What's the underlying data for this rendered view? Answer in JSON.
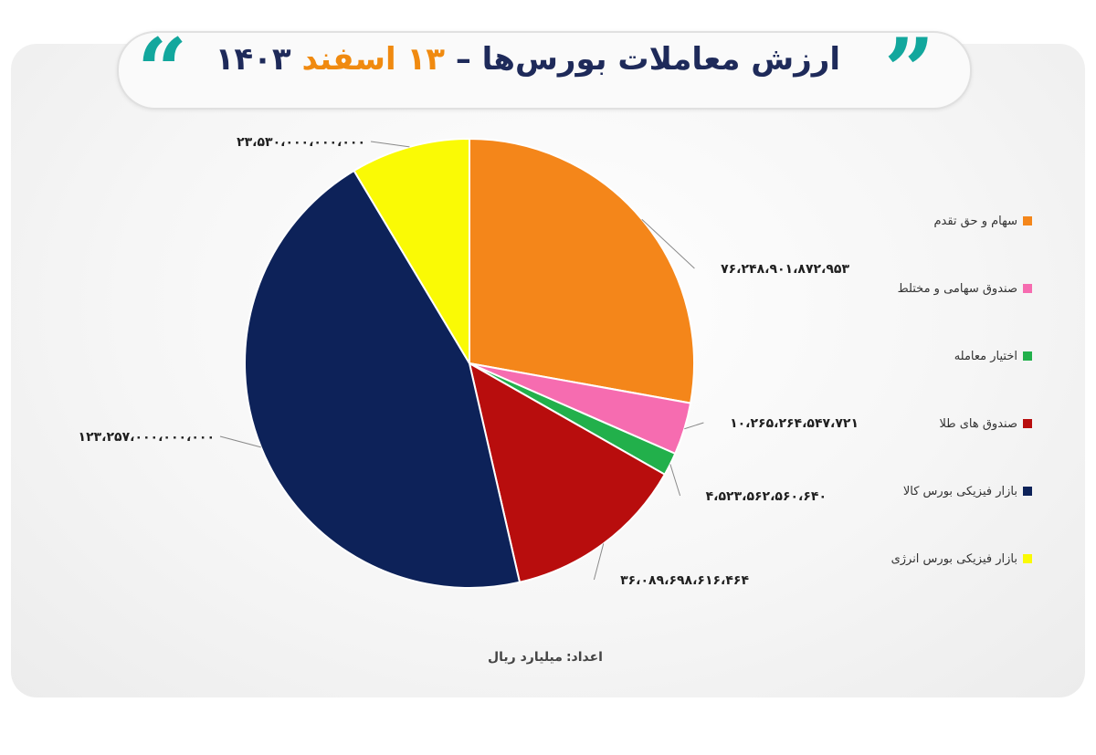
{
  "header": {
    "title_main": "ارزش معاملات بورس‌ها –",
    "title_day": "۱۳",
    "title_month": "اسفند",
    "title_year": "۱۴۰۳",
    "quote_open": "“",
    "quote_close": "”"
  },
  "footer": {
    "unit_label": "اعداد:",
    "unit_value": "میلیارد ریال"
  },
  "chart_data": {
    "type": "pie",
    "title": "ارزش معاملات بورس‌ها – ۱۳ اسفند ۱۴۰۳",
    "legend_position": "right",
    "slices": [
      {
        "name": "سهام و حق تقدم",
        "value": 76248901872953,
        "label": "۷۶،۲۴۸،۹۰۱،۸۷۲،۹۵۳",
        "color": "#F4861A"
      },
      {
        "name": "صندوق سهامی و مختلط",
        "value": 10265264547721,
        "label": "۱۰،۲۶۵،۲۶۴،۵۴۷،۷۲۱",
        "color": "#F66CB0"
      },
      {
        "name": "اختیار معامله",
        "value": 4523562560640,
        "label": "۴،۵۲۳،۵۶۲،۵۶۰،۶۴۰",
        "color": "#22B04B"
      },
      {
        "name": "صندوق های طلا",
        "value": 36089698616464,
        "label": "۳۶،۰۸۹،۶۹۸،۶۱۶،۴۶۴",
        "color": "#B80D0D"
      },
      {
        "name": "بازار فیزیکی بورس کالا",
        "value": 123257000000000,
        "label": "۱۲۳،۲۵۷،۰۰۰،۰۰۰،۰۰۰",
        "color": "#0D2259"
      },
      {
        "name": "بازار فیزیکی بورس انرژی",
        "value": 23530000000000,
        "label": "۲۳،۵۳۰،۰۰۰،۰۰۰،۰۰۰",
        "color": "#FAFA05"
      }
    ]
  }
}
